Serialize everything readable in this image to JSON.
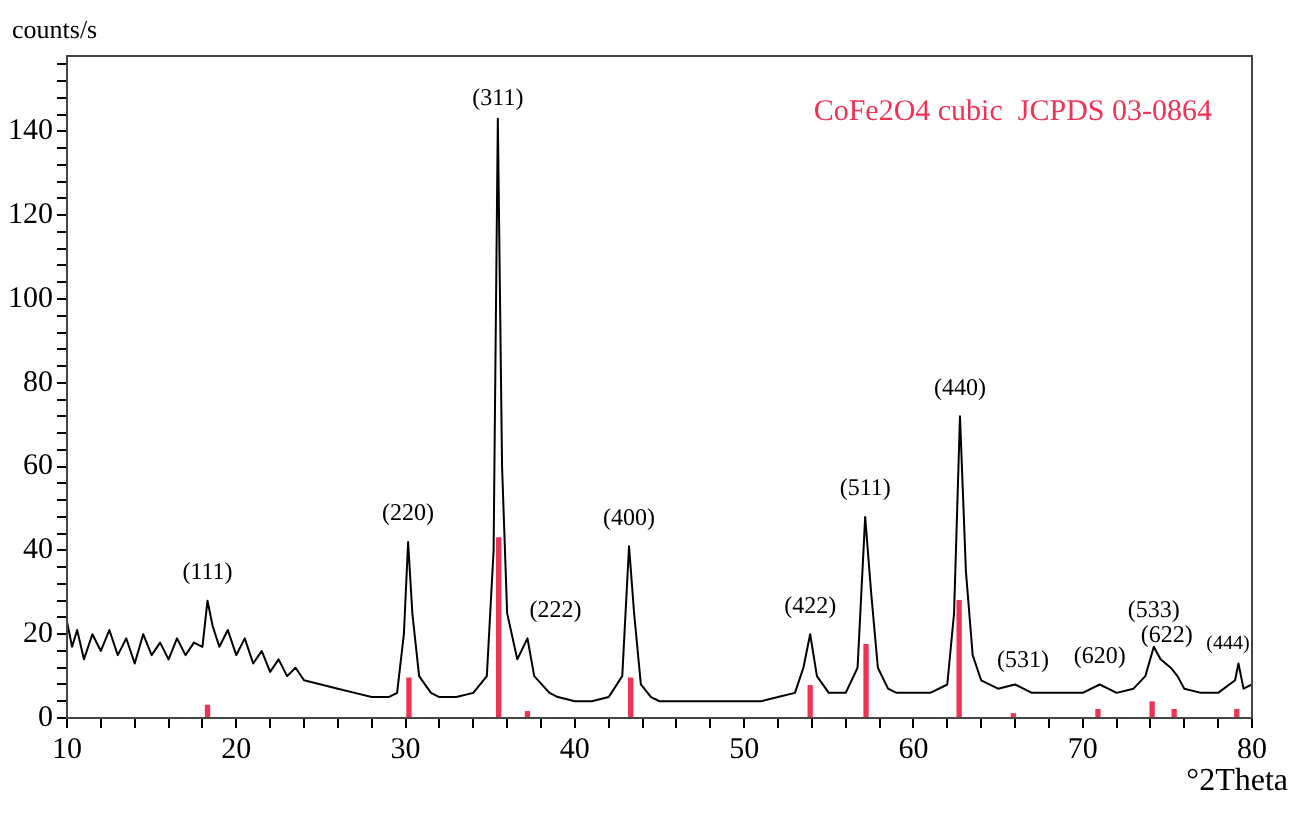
{
  "chart_data": {
    "type": "line",
    "xlabel": "°2Theta",
    "ylabel": "counts/s",
    "xlim": [
      10,
      80
    ],
    "xticks": [
      10,
      {
        "value": 12,
        "label": null
      },
      {
        "value": 14,
        "label": null
      },
      {
        "value": 16,
        "label": null
      },
      {
        "value": 18,
        "label": null
      },
      20,
      {
        "value": 22,
        "label": null
      },
      {
        "value": 24,
        "label": null
      },
      {
        "value": 26,
        "label": null
      },
      {
        "value": 28,
        "label": null
      },
      30,
      {
        "value": 32,
        "label": null
      },
      {
        "value": 34,
        "label": null
      },
      {
        "value": 36,
        "label": null
      },
      {
        "value": 38,
        "label": null
      },
      40,
      {
        "value": 42,
        "label": null
      },
      {
        "value": 44,
        "label": null
      },
      {
        "value": 46,
        "label": null
      },
      {
        "value": 48,
        "label": null
      },
      50,
      {
        "value": 52,
        "label": null
      },
      {
        "value": 54,
        "label": null
      },
      {
        "value": 56,
        "label": null
      },
      {
        "value": 58,
        "label": null
      },
      60,
      {
        "value": 62,
        "label": null
      },
      {
        "value": 64,
        "label": null
      },
      {
        "value": 66,
        "label": null
      },
      {
        "value": 68,
        "label": null
      },
      70,
      {
        "value": 72,
        "label": null
      },
      {
        "value": 74,
        "label": null
      },
      {
        "value": 76,
        "label": null
      },
      {
        "value": 78,
        "label": null
      },
      80
    ],
    "ylim": [
      0,
      158
    ],
    "yticks": [
      0,
      {
        "value": 4,
        "label": null
      },
      {
        "value": 8,
        "label": null
      },
      {
        "value": 12,
        "label": null
      },
      {
        "value": 16,
        "label": null
      },
      20,
      {
        "value": 24,
        "label": null
      },
      {
        "value": 28,
        "label": null
      },
      {
        "value": 32,
        "label": null
      },
      {
        "value": 36,
        "label": null
      },
      40,
      {
        "value": 44,
        "label": null
      },
      {
        "value": 48,
        "label": null
      },
      {
        "value": 52,
        "label": null
      },
      {
        "value": 56,
        "label": null
      },
      60,
      {
        "value": 64,
        "label": null
      },
      {
        "value": 68,
        "label": null
      },
      {
        "value": 72,
        "label": null
      },
      {
        "value": 76,
        "label": null
      },
      80,
      {
        "value": 84,
        "label": null
      },
      {
        "value": 88,
        "label": null
      },
      {
        "value": 92,
        "label": null
      },
      {
        "value": 96,
        "label": null
      },
      100,
      {
        "value": 104,
        "label": null
      },
      {
        "value": 108,
        "label": null
      },
      {
        "value": 112,
        "label": null
      },
      {
        "value": 116,
        "label": null
      },
      120,
      {
        "value": 124,
        "label": null
      },
      {
        "value": 128,
        "label": null
      },
      {
        "value": 132,
        "label": null
      },
      {
        "value": 136,
        "label": null
      },
      140,
      {
        "value": 144,
        "label": null
      },
      {
        "value": 148,
        "label": null
      },
      {
        "value": 152,
        "label": null
      },
      {
        "value": 156,
        "label": null
      }
    ],
    "grid": false,
    "legend": "top right",
    "marker": "none",
    "line_style": "solid",
    "series": [
      {
        "color": "#000000",
        "x": [
          10,
          10.3,
          10.6,
          11,
          11.5,
          12,
          12.5,
          13,
          13.5,
          14,
          14.5,
          15,
          15.5,
          16,
          16.5,
          17,
          17.5,
          18,
          18.3,
          18.6,
          19,
          19.5,
          20,
          20.5,
          21,
          21.5,
          22,
          22.5,
          23,
          23.5,
          24,
          25,
          26,
          27,
          28,
          29,
          29.5,
          29.9,
          30.15,
          30.4,
          30.8,
          31.5,
          32,
          33,
          34,
          34.8,
          35.2,
          35.45,
          35.7,
          36,
          36.6,
          37.2,
          37.6,
          38.5,
          39,
          40,
          41,
          42,
          42.8,
          43.2,
          43.5,
          43.9,
          44.5,
          45,
          46,
          47,
          48,
          49,
          50,
          51,
          52,
          53,
          53.5,
          53.9,
          54.3,
          55,
          56,
          56.7,
          57.15,
          57.5,
          57.9,
          58.5,
          59,
          60,
          61,
          62,
          62.4,
          62.75,
          63.1,
          63.5,
          64,
          65,
          66,
          67,
          68,
          69,
          70,
          71,
          71.5,
          72,
          73,
          73.7,
          74.2,
          74.6,
          75.2,
          75.6,
          76,
          77,
          78,
          79,
          79.2,
          79.5,
          80
        ],
        "values": [
          23,
          17,
          21,
          14,
          20,
          16,
          21,
          15,
          19,
          13,
          20,
          15,
          18,
          14,
          19,
          15,
          18,
          17,
          28,
          22,
          17,
          21,
          15,
          19,
          13,
          16,
          11,
          14,
          10,
          12,
          9,
          8,
          7,
          6,
          5,
          5,
          6,
          20,
          42,
          25,
          10,
          6,
          5,
          5,
          6,
          10,
          40,
          143,
          60,
          25,
          14,
          19,
          10,
          6,
          5,
          4,
          4,
          5,
          10,
          41,
          25,
          8,
          5,
          4,
          4,
          4,
          4,
          4,
          4,
          4,
          5,
          6,
          12,
          20,
          10,
          6,
          6,
          12,
          48,
          30,
          12,
          7,
          6,
          6,
          6,
          8,
          25,
          72,
          35,
          15,
          9,
          7,
          8,
          6,
          6,
          6,
          6,
          8,
          7,
          6,
          7,
          10,
          17,
          14,
          12,
          10,
          7,
          6,
          6,
          9,
          13,
          7,
          8
        ]
      },
      {
        "type": "bar",
        "name": "CoFe2O4 cubic  JCPDS 03-0864",
        "color": "#ee3355",
        "x": [
          18.3,
          30.2,
          35.5,
          37.2,
          43.3,
          53.9,
          57.2,
          62.7,
          65.9,
          70.9,
          74.1,
          75.4,
          79.1
        ],
        "values": [
          3,
          9.5,
          43,
          1.5,
          9.5,
          7.7,
          17.5,
          28,
          1,
          2,
          3.8,
          2,
          2
        ]
      }
    ],
    "annotations": [
      {
        "text": "(111)",
        "x": 18.3,
        "y": 28
      },
      {
        "text": "(220)",
        "x": 30.15,
        "y": 42
      },
      {
        "text": "(311)",
        "x": 35.45,
        "y": 143
      },
      {
        "text": "(222)",
        "x": 37.2,
        "y": 19
      },
      {
        "text": "(400)",
        "x": 43.2,
        "y": 41
      },
      {
        "text": "(422)",
        "x": 53.9,
        "y": 20
      },
      {
        "text": "(511)",
        "x": 57.15,
        "y": 48
      },
      {
        "text": "(440)",
        "x": 62.75,
        "y": 72
      },
      {
        "text": "(531)",
        "x": 66,
        "y": 8
      },
      {
        "text": "(620)",
        "x": 71,
        "y": 8
      },
      {
        "text": "(533)",
        "x": 74.2,
        "y": 17
      },
      {
        "text": "(622)",
        "x": 75.2,
        "y": 12
      },
      {
        "text": "(444)",
        "x": 79.2,
        "y": 13
      }
    ]
  }
}
